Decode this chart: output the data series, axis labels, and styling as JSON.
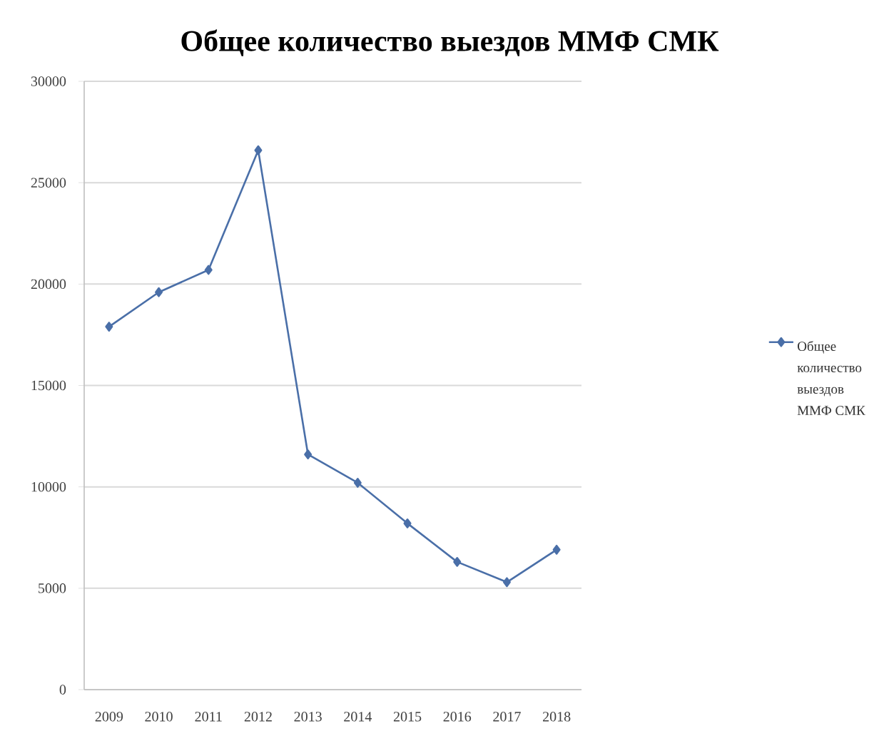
{
  "chart_data": {
    "type": "line",
    "title": "Общее количество выездов ММФ СМК",
    "categories": [
      "2009",
      "2010",
      "2011",
      "2012",
      "2013",
      "2014",
      "2015",
      "2016",
      "2017",
      "2018"
    ],
    "series": [
      {
        "name": "Общее количество выездов ММФ СМК",
        "color": "#4a6fa8",
        "values": [
          17900,
          19600,
          20700,
          26600,
          11600,
          10200,
          8200,
          6300,
          5300,
          6900
        ]
      }
    ],
    "ylim": [
      0,
      30000
    ],
    "yticks": [
      0,
      5000,
      10000,
      15000,
      20000,
      25000,
      30000
    ],
    "grid": "y",
    "legend": "right",
    "marker": "diamond",
    "line_style": "solid"
  }
}
